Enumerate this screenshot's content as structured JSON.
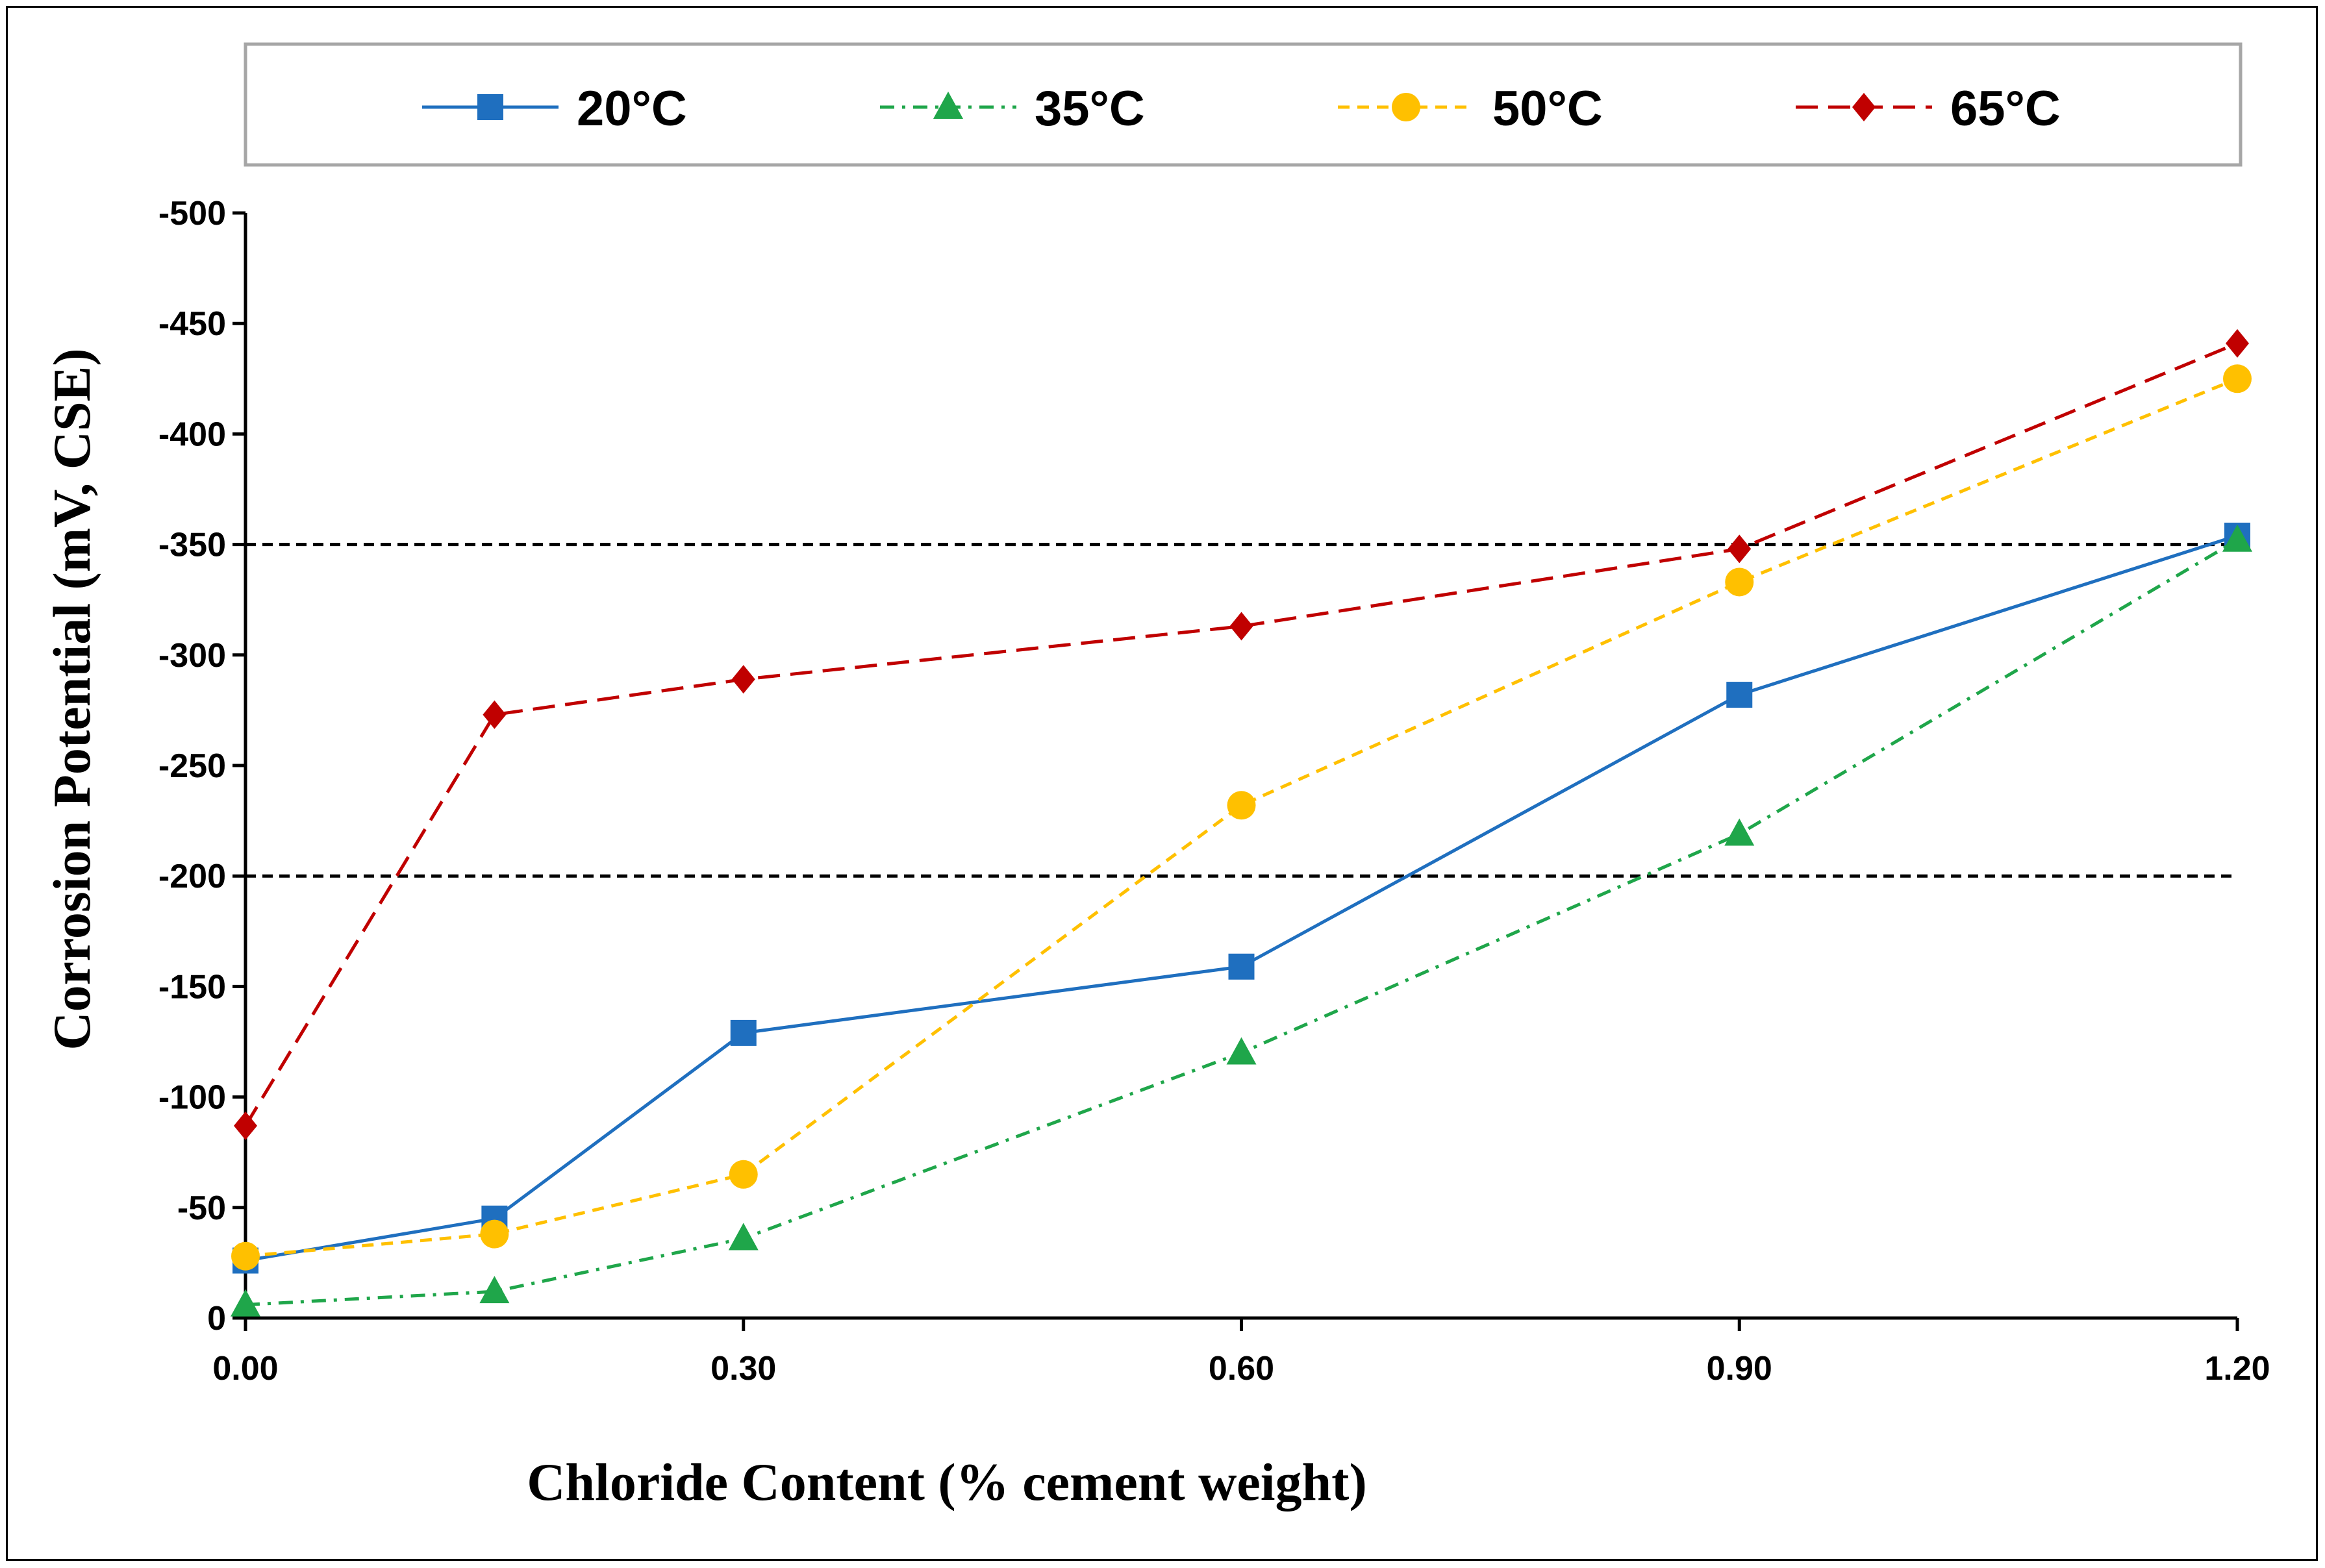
{
  "chart_data": {
    "type": "line",
    "title": "",
    "xlabel": "Chloride Content (% cement weight)",
    "ylabel": "Corrosion Potential (mV, CSE)",
    "xlim": [
      0,
      1.2
    ],
    "ylim": [
      0,
      -500
    ],
    "x_ticks": [
      0.0,
      0.3,
      0.6,
      0.9,
      1.2
    ],
    "x_tick_labels": [
      "0.00",
      "0.30",
      "0.60",
      "0.90",
      "1.20"
    ],
    "y_ticks": [
      0,
      -50,
      -100,
      -150,
      -200,
      -250,
      -300,
      -350,
      -400,
      -450,
      -500
    ],
    "y_tick_labels": [
      "0",
      "-50",
      "-100",
      "-150",
      "-200",
      "-250",
      "-300",
      "-350",
      "-400",
      "-450",
      "-500"
    ],
    "reference_lines": [
      -200,
      -350
    ],
    "legend_position": "top",
    "series": [
      {
        "name": "20°C",
        "color": "#1F6FBF",
        "marker": "square",
        "dash": "solid",
        "x": [
          0.0,
          0.15,
          0.3,
          0.6,
          0.9,
          1.2
        ],
        "values": [
          -26,
          -45,
          -129,
          -159,
          -282,
          -354
        ]
      },
      {
        "name": "35°C",
        "color": "#1FA64A",
        "marker": "triangle",
        "dash": "dashdot",
        "x": [
          0.0,
          0.15,
          0.3,
          0.6,
          0.9,
          1.2
        ],
        "values": [
          -6,
          -12,
          -36,
          -120,
          -219,
          -352
        ]
      },
      {
        "name": "50°C",
        "color": "#FFC000",
        "marker": "circle",
        "dash": "dash",
        "x": [
          0.0,
          0.15,
          0.3,
          0.6,
          0.9,
          1.2
        ],
        "values": [
          -28,
          -38,
          -65,
          -232,
          -333,
          -425
        ]
      },
      {
        "name": "65°C",
        "color": "#C00000",
        "marker": "diamond",
        "dash": "longdash",
        "x": [
          0.0,
          0.15,
          0.3,
          0.6,
          0.9,
          1.2
        ],
        "values": [
          -87,
          -273,
          -289,
          -313,
          -348,
          -441
        ]
      }
    ]
  }
}
